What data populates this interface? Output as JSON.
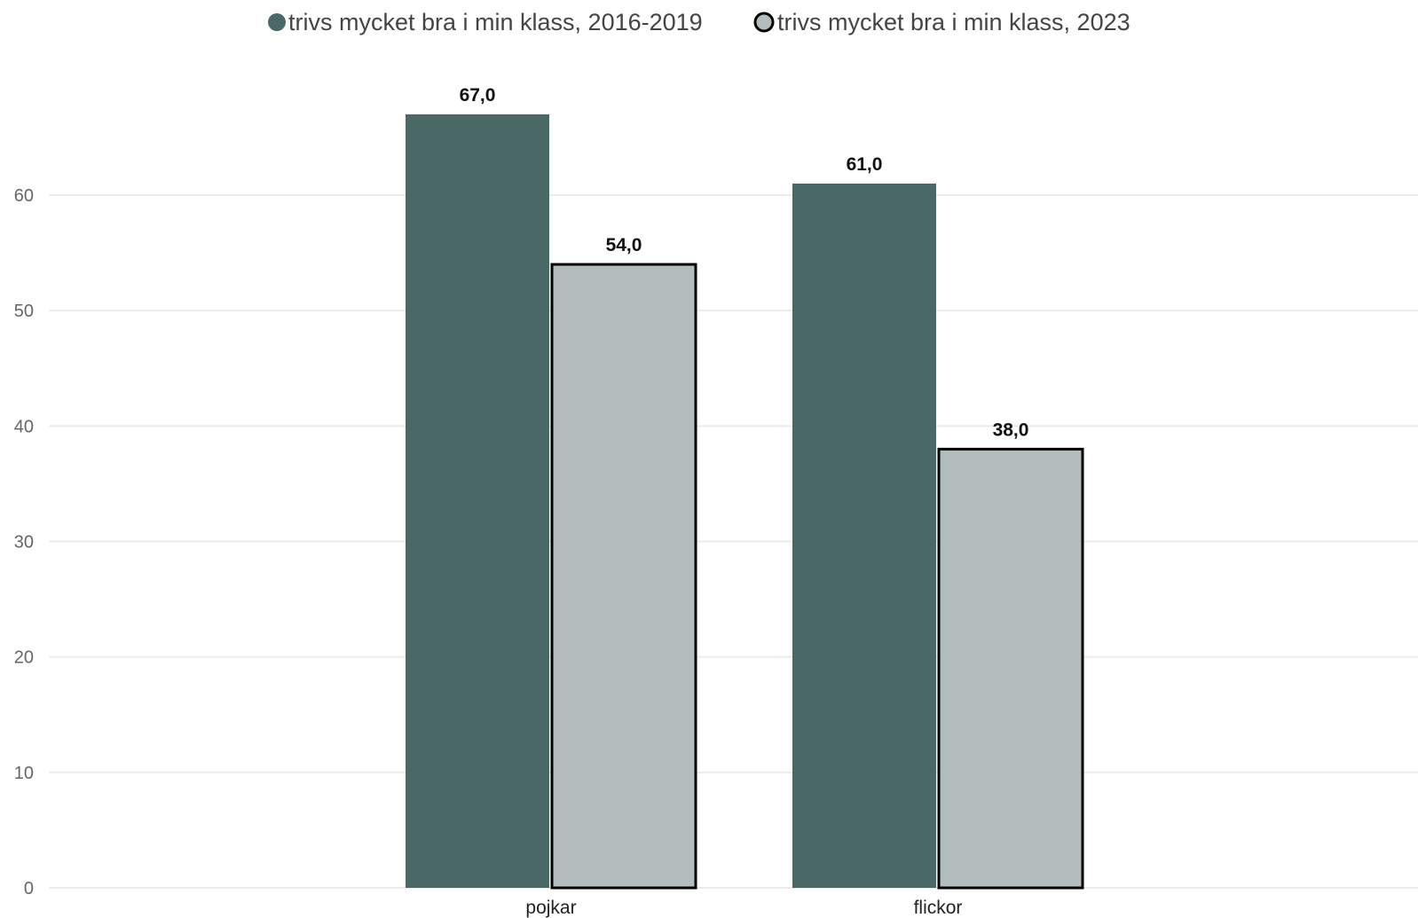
{
  "chart_data": {
    "type": "bar",
    "categories": [
      "pojkar",
      "flickor"
    ],
    "series": [
      {
        "name": "trivs mycket bra i min klass, 2016-2019",
        "values": [
          67.0,
          61.0
        ],
        "value_labels": [
          "67,0",
          "61,0"
        ],
        "color": "#4a6866"
      },
      {
        "name": "trivs mycket bra i min klass, 2023",
        "values": [
          54.0,
          38.0
        ],
        "value_labels": [
          "54,0",
          "38,0"
        ],
        "color": "#b4bdbd",
        "stroke": "#000000"
      }
    ],
    "yticks": [
      0,
      10,
      20,
      30,
      40,
      50,
      60
    ],
    "ylim": [
      0,
      70
    ],
    "grid": true,
    "legend_position": "top-center",
    "gridline_color": "#ebebeb"
  }
}
